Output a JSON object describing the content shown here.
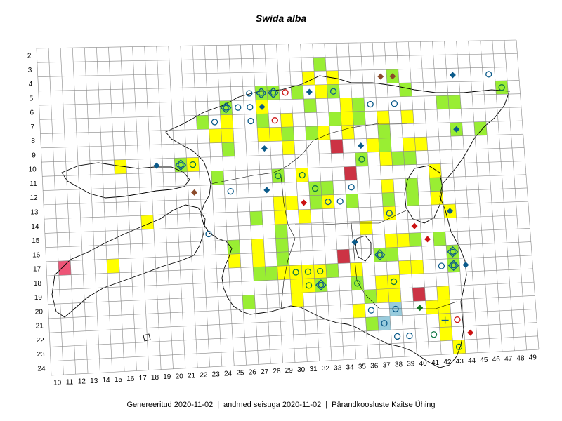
{
  "map": {
    "title": "Swida alba",
    "row_labels": [
      "2",
      "3",
      "4",
      "5",
      "6",
      "7",
      "8",
      "9",
      "10",
      "11",
      "12",
      "13",
      "14",
      "15",
      "16",
      "17",
      "18",
      "19",
      "20",
      "21",
      "22",
      "23",
      "24"
    ],
    "col_labels": [
      "10",
      "11",
      "12",
      "13",
      "14",
      "15",
      "16",
      "17",
      "18",
      "19",
      "20",
      "21",
      "22",
      "23",
      "24",
      "25",
      "26",
      "27",
      "28",
      "29",
      "30",
      "31",
      "32",
      "33",
      "34",
      "35",
      "36",
      "37",
      "38",
      "39",
      "40",
      "41",
      "42",
      "43",
      "44",
      "45",
      "46",
      "47",
      "48",
      "49"
    ],
    "colors": {
      "yellow": "#ffff00",
      "green": "#99ee33",
      "darkred": "#cc3344",
      "pink": "#ee5577",
      "lightblue": "#99ccdd",
      "blue_marker": "#0a5a8a",
      "red_marker": "#cc1111",
      "brown_marker": "#8b4a2a",
      "grid": "#888888"
    },
    "cells": [
      {
        "c": "33",
        "r": "3",
        "f": "green"
      },
      {
        "c": "32",
        "r": "4",
        "f": "yellow"
      },
      {
        "c": "34",
        "r": "4",
        "f": "yellow"
      },
      {
        "c": "39",
        "r": "4",
        "f": "green"
      },
      {
        "c": "28",
        "r": "5",
        "f": "green"
      },
      {
        "c": "29",
        "r": "5",
        "f": "green"
      },
      {
        "c": "31",
        "r": "5",
        "f": "green"
      },
      {
        "c": "33",
        "r": "5",
        "f": "yellow"
      },
      {
        "c": "34",
        "r": "5",
        "f": "green"
      },
      {
        "c": "40",
        "r": "5",
        "f": "green"
      },
      {
        "c": "48",
        "r": "5",
        "f": "green"
      },
      {
        "c": "25",
        "r": "6",
        "f": "green"
      },
      {
        "c": "28",
        "r": "6",
        "f": "yellow"
      },
      {
        "c": "32",
        "r": "6",
        "f": "green"
      },
      {
        "c": "35",
        "r": "6",
        "f": "yellow"
      },
      {
        "c": "36",
        "r": "6",
        "f": "green"
      },
      {
        "c": "43",
        "r": "6",
        "f": "green"
      },
      {
        "c": "44",
        "r": "6",
        "f": "green"
      },
      {
        "c": "23",
        "r": "7",
        "f": "green"
      },
      {
        "c": "25",
        "r": "7",
        "f": "yellow"
      },
      {
        "c": "28",
        "r": "7",
        "f": "green"
      },
      {
        "c": "30",
        "r": "7",
        "f": "yellow"
      },
      {
        "c": "34",
        "r": "7",
        "f": "green"
      },
      {
        "c": "35",
        "r": "7",
        "f": "yellow"
      },
      {
        "c": "36",
        "r": "7",
        "f": "green"
      },
      {
        "c": "38",
        "r": "7",
        "f": "yellow"
      },
      {
        "c": "40",
        "r": "7",
        "f": "yellow"
      },
      {
        "c": "24",
        "r": "8",
        "f": "yellow"
      },
      {
        "c": "25",
        "r": "8",
        "f": "yellow"
      },
      {
        "c": "28",
        "r": "8",
        "f": "yellow"
      },
      {
        "c": "29",
        "r": "8",
        "f": "yellow"
      },
      {
        "c": "30",
        "r": "8",
        "f": "green"
      },
      {
        "c": "32",
        "r": "8",
        "f": "green"
      },
      {
        "c": "33",
        "r": "8",
        "f": "yellow"
      },
      {
        "c": "35",
        "r": "8",
        "f": "yellow"
      },
      {
        "c": "38",
        "r": "8",
        "f": "green"
      },
      {
        "c": "44",
        "r": "8",
        "f": "green"
      },
      {
        "c": "46",
        "r": "8",
        "f": "green"
      },
      {
        "c": "25",
        "r": "9",
        "f": "green"
      },
      {
        "c": "30",
        "r": "9",
        "f": "yellow"
      },
      {
        "c": "34",
        "r": "9",
        "f": "darkred"
      },
      {
        "c": "37",
        "r": "9",
        "f": "yellow"
      },
      {
        "c": "38",
        "r": "9",
        "f": "green"
      },
      {
        "c": "40",
        "r": "9",
        "f": "yellow"
      },
      {
        "c": "41",
        "r": "9",
        "f": "yellow"
      },
      {
        "c": "16",
        "r": "10",
        "f": "yellow"
      },
      {
        "c": "21",
        "r": "10",
        "f": "green"
      },
      {
        "c": "22",
        "r": "10",
        "f": "yellow"
      },
      {
        "c": "36",
        "r": "10",
        "f": "green"
      },
      {
        "c": "38",
        "r": "10",
        "f": "yellow"
      },
      {
        "c": "39",
        "r": "10",
        "f": "green"
      },
      {
        "c": "40",
        "r": "10",
        "f": "green"
      },
      {
        "c": "24",
        "r": "11",
        "f": "green"
      },
      {
        "c": "29",
        "r": "11",
        "f": "green"
      },
      {
        "c": "31",
        "r": "11",
        "f": "yellow"
      },
      {
        "c": "35",
        "r": "11",
        "f": "darkred"
      },
      {
        "c": "42",
        "r": "11",
        "f": "yellow"
      },
      {
        "c": "32",
        "r": "12",
        "f": "green"
      },
      {
        "c": "33",
        "r": "12",
        "f": "green"
      },
      {
        "c": "38",
        "r": "12",
        "f": "yellow"
      },
      {
        "c": "40",
        "r": "12",
        "f": "green"
      },
      {
        "c": "42",
        "r": "12",
        "f": "green"
      },
      {
        "c": "29",
        "r": "13",
        "f": "yellow"
      },
      {
        "c": "30",
        "r": "13",
        "f": "yellow"
      },
      {
        "c": "32",
        "r": "13",
        "f": "green"
      },
      {
        "c": "33",
        "r": "13",
        "f": "yellow"
      },
      {
        "c": "35",
        "r": "13",
        "f": "green"
      },
      {
        "c": "38",
        "r": "13",
        "f": "green"
      },
      {
        "c": "40",
        "r": "13",
        "f": "green"
      },
      {
        "c": "42",
        "r": "13",
        "f": "yellow"
      },
      {
        "c": "18",
        "r": "14",
        "f": "yellow"
      },
      {
        "c": "27",
        "r": "14",
        "f": "green"
      },
      {
        "c": "29",
        "r": "14",
        "f": "yellow"
      },
      {
        "c": "31",
        "r": "14",
        "f": "yellow"
      },
      {
        "c": "38",
        "r": "14",
        "f": "yellow"
      },
      {
        "c": "43",
        "r": "14",
        "f": "yellow"
      },
      {
        "c": "29",
        "r": "15",
        "f": "green"
      },
      {
        "c": "36",
        "r": "15",
        "f": "yellow"
      },
      {
        "c": "25",
        "r": "16",
        "f": "green"
      },
      {
        "c": "27",
        "r": "16",
        "f": "yellow"
      },
      {
        "c": "29",
        "r": "16",
        "f": "green"
      },
      {
        "c": "38",
        "r": "16",
        "f": "yellow"
      },
      {
        "c": "39",
        "r": "16",
        "f": "yellow"
      },
      {
        "c": "40",
        "r": "16",
        "f": "green"
      },
      {
        "c": "42",
        "r": "16",
        "f": "green"
      },
      {
        "c": "11",
        "r": "17",
        "f": "pink"
      },
      {
        "c": "15",
        "r": "17",
        "f": "yellow"
      },
      {
        "c": "25",
        "r": "17",
        "f": "yellow"
      },
      {
        "c": "27",
        "r": "17",
        "f": "yellow"
      },
      {
        "c": "29",
        "r": "17",
        "f": "green"
      },
      {
        "c": "34",
        "r": "17",
        "f": "darkred"
      },
      {
        "c": "37",
        "r": "17",
        "f": "green"
      },
      {
        "c": "38",
        "r": "17",
        "f": "green"
      },
      {
        "c": "43",
        "r": "17",
        "f": "green"
      },
      {
        "c": "27",
        "r": "18",
        "f": "green"
      },
      {
        "c": "28",
        "r": "18",
        "f": "green"
      },
      {
        "c": "29",
        "r": "18",
        "f": "yellow"
      },
      {
        "c": "30",
        "r": "18",
        "f": "yellow"
      },
      {
        "c": "31",
        "r": "18",
        "f": "yellow"
      },
      {
        "c": "32",
        "r": "18",
        "f": "yellow"
      },
      {
        "c": "33",
        "r": "18",
        "f": "green"
      },
      {
        "c": "35",
        "r": "18",
        "f": "yellow"
      },
      {
        "c": "39",
        "r": "18",
        "f": "yellow"
      },
      {
        "c": "40",
        "r": "18",
        "f": "yellow"
      },
      {
        "c": "43",
        "r": "18",
        "f": "green"
      },
      {
        "c": "30",
        "r": "19",
        "f": "yellow"
      },
      {
        "c": "31",
        "r": "19",
        "f": "yellow"
      },
      {
        "c": "32",
        "r": "19",
        "f": "green"
      },
      {
        "c": "35",
        "r": "19",
        "f": "green"
      },
      {
        "c": "37",
        "r": "19",
        "f": "yellow"
      },
      {
        "c": "38",
        "r": "19",
        "f": "yellow"
      },
      {
        "c": "26",
        "r": "20",
        "f": "green"
      },
      {
        "c": "30",
        "r": "20",
        "f": "yellow"
      },
      {
        "c": "36",
        "r": "20",
        "f": "green"
      },
      {
        "c": "37",
        "r": "20",
        "f": "yellow"
      },
      {
        "c": "38",
        "r": "20",
        "f": "yellow"
      },
      {
        "c": "40",
        "r": "20",
        "f": "darkred"
      },
      {
        "c": "42",
        "r": "20",
        "f": "yellow"
      },
      {
        "c": "35",
        "r": "21",
        "f": "yellow"
      },
      {
        "c": "38",
        "r": "21",
        "f": "lightblue"
      },
      {
        "c": "41",
        "r": "21",
        "f": "yellow"
      },
      {
        "c": "42",
        "r": "21",
        "f": "yellow"
      },
      {
        "c": "36",
        "r": "22",
        "f": "green"
      },
      {
        "c": "37",
        "r": "22",
        "f": "lightblue"
      },
      {
        "c": "42",
        "r": "22",
        "f": "yellow"
      },
      {
        "c": "42",
        "r": "23",
        "f": "yellow"
      },
      {
        "c": "43",
        "r": "24",
        "f": "yellow"
      }
    ],
    "markers": [
      {
        "c": "44",
        "r": "4",
        "t": "bdiam"
      },
      {
        "c": "38",
        "r": "4",
        "t": "brdiam"
      },
      {
        "c": "39",
        "r": "4",
        "t": "brdiam"
      },
      {
        "c": "47",
        "r": "4",
        "t": "bcirc"
      },
      {
        "c": "48",
        "r": "5",
        "t": "gcirc"
      },
      {
        "c": "27",
        "r": "5",
        "t": "bcirc"
      },
      {
        "c": "28",
        "r": "5",
        "t": "dcirc"
      },
      {
        "c": "29",
        "r": "5",
        "t": "dcirc"
      },
      {
        "c": "30",
        "r": "5",
        "t": "rcirc"
      },
      {
        "c": "32",
        "r": "5",
        "t": "bdiam"
      },
      {
        "c": "34",
        "r": "5",
        "t": "bcirc"
      },
      {
        "c": "25",
        "r": "6",
        "t": "dcirc"
      },
      {
        "c": "26",
        "r": "6",
        "t": "bcirc"
      },
      {
        "c": "27",
        "r": "6",
        "t": "bcirc"
      },
      {
        "c": "28",
        "r": "6",
        "t": "bdiam"
      },
      {
        "c": "37",
        "r": "6",
        "t": "bcirc"
      },
      {
        "c": "39",
        "r": "6",
        "t": "bcirc"
      },
      {
        "c": "24",
        "r": "7",
        "t": "bcirc"
      },
      {
        "c": "27",
        "r": "7",
        "t": "bcirc"
      },
      {
        "c": "29",
        "r": "7",
        "t": "rcirc"
      },
      {
        "c": "28",
        "r": "9",
        "t": "bdiam"
      },
      {
        "c": "36",
        "r": "9",
        "t": "bdiam"
      },
      {
        "c": "44",
        "r": "8",
        "t": "bdiam"
      },
      {
        "c": "19",
        "r": "10",
        "t": "bdiam"
      },
      {
        "c": "21",
        "r": "10",
        "t": "dcirc"
      },
      {
        "c": "22",
        "r": "10",
        "t": "gcirc"
      },
      {
        "c": "36",
        "r": "10",
        "t": "gcirc"
      },
      {
        "c": "29",
        "r": "11",
        "t": "gcirc"
      },
      {
        "c": "31",
        "r": "11",
        "t": "gcirc"
      },
      {
        "c": "22",
        "r": "12",
        "t": "brdiam"
      },
      {
        "c": "25",
        "r": "12",
        "t": "bcirc"
      },
      {
        "c": "28",
        "r": "12",
        "t": "bdiam"
      },
      {
        "c": "32",
        "r": "12",
        "t": "gcirc"
      },
      {
        "c": "31",
        "r": "13",
        "t": "rdiam"
      },
      {
        "c": "33",
        "r": "13",
        "t": "bcirc"
      },
      {
        "c": "34",
        "r": "13",
        "t": "bcirc"
      },
      {
        "c": "35",
        "r": "12",
        "t": "bcirc"
      },
      {
        "c": "38",
        "r": "14",
        "t": "bcirc"
      },
      {
        "c": "43",
        "r": "14",
        "t": "bdiam"
      },
      {
        "c": "23",
        "r": "15",
        "t": "bcirc"
      },
      {
        "c": "40",
        "r": "15",
        "t": "rdiam"
      },
      {
        "c": "41",
        "r": "16",
        "t": "rdiam"
      },
      {
        "c": "35",
        "r": "16",
        "t": "bdiam"
      },
      {
        "c": "37",
        "r": "17",
        "t": "dcirc"
      },
      {
        "c": "43",
        "r": "17",
        "t": "dcirc"
      },
      {
        "c": "30",
        "r": "18",
        "t": "gcirc"
      },
      {
        "c": "31",
        "r": "18",
        "t": "gcirc"
      },
      {
        "c": "32",
        "r": "18",
        "t": "gcirc"
      },
      {
        "c": "42",
        "r": "18",
        "t": "bcirc"
      },
      {
        "c": "43",
        "r": "18",
        "t": "dcirc"
      },
      {
        "c": "44",
        "r": "18",
        "t": "bdiam"
      },
      {
        "c": "31",
        "r": "19",
        "t": "gcirc"
      },
      {
        "c": "32",
        "r": "19",
        "t": "dcirc"
      },
      {
        "c": "35",
        "r": "19",
        "t": "gcirc"
      },
      {
        "c": "38",
        "r": "19",
        "t": "gcirc"
      },
      {
        "c": "36",
        "r": "21",
        "t": "bcirc"
      },
      {
        "c": "38",
        "r": "21",
        "t": "bcirc"
      },
      {
        "c": "40",
        "r": "21",
        "t": "gdiam"
      },
      {
        "c": "37",
        "r": "22",
        "t": "bcirc"
      },
      {
        "c": "42",
        "r": "22",
        "t": "cross"
      },
      {
        "c": "43",
        "r": "22",
        "t": "rcirc"
      },
      {
        "c": "38",
        "r": "23",
        "t": "bcirc"
      },
      {
        "c": "39",
        "r": "23",
        "t": "bcirc"
      },
      {
        "c": "41",
        "r": "23",
        "t": "gcirc"
      },
      {
        "c": "44",
        "r": "23",
        "t": "rdiam"
      },
      {
        "c": "43",
        "r": "24",
        "t": "gcirc"
      }
    ]
  },
  "footer": {
    "generated": "Genereeritud 2020-11-02",
    "data_state": "andmed seisuga 2020-11-02",
    "org": "Pärandkoosluste Kaitse Ühing",
    "separator": "|"
  }
}
